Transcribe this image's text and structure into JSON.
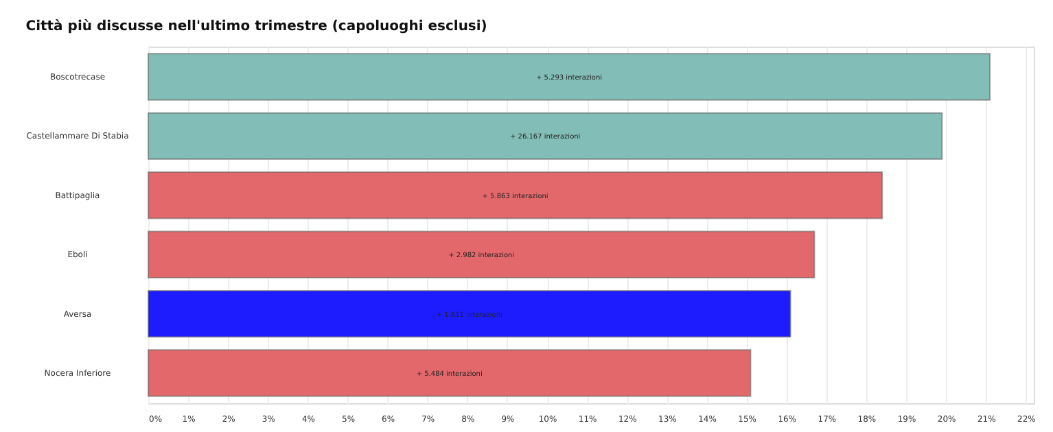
{
  "chart_data": {
    "type": "bar",
    "orientation": "horizontal",
    "title": "Città più discusse nell'ultimo trimestre (capoluoghi esclusi)",
    "categories": [
      "Boscotrecase",
      "Castellammare Di Stabia",
      "Battipaglia",
      "Eboli",
      "Aversa",
      "Nocera Inferiore"
    ],
    "values": [
      21.1,
      19.9,
      18.4,
      16.7,
      16.1,
      15.1
    ],
    "colors": [
      "#82beb7",
      "#82beb7",
      "#e3686b",
      "#e3686b",
      "#1c1cff",
      "#e3686b"
    ],
    "annotations": [
      {
        "text": "+ 5.293 interazioni",
        "y": "Boscotrecase"
      },
      {
        "text": "+ 26.167 interazioni",
        "y": "Castellammare Di Stabia"
      },
      {
        "text": "+ 5.863 interazioni",
        "y": "Battipaglia"
      },
      {
        "text": "+ 2.982 interazioni",
        "y": "Eboli"
      },
      {
        "text": "+ 1.611 interazioni",
        "y": "Aversa"
      },
      {
        "text": "+ 5.484 interazioni",
        "y": "Nocera Inferiore"
      }
    ],
    "xlim": [
      0,
      22.2
    ],
    "xticks": [
      {
        "value": 0,
        "label": "0%"
      },
      {
        "value": 1,
        "label": "1%"
      },
      {
        "value": 2,
        "label": "2%"
      },
      {
        "value": 3,
        "label": "3%"
      },
      {
        "value": 4,
        "label": "4%"
      },
      {
        "value": 5,
        "label": "5%"
      },
      {
        "value": 6,
        "label": "6%"
      },
      {
        "value": 7,
        "label": "7%"
      },
      {
        "value": 8,
        "label": "8%"
      },
      {
        "value": 9,
        "label": "9%"
      },
      {
        "value": 10,
        "label": "10%"
      },
      {
        "value": 11,
        "label": "11%"
      },
      {
        "value": 12,
        "label": "12%"
      },
      {
        "value": 13,
        "label": "13%"
      },
      {
        "value": 14,
        "label": "14%"
      },
      {
        "value": 15,
        "label": "15%"
      },
      {
        "value": 16,
        "label": "16%"
      },
      {
        "value": 17,
        "label": "17%"
      },
      {
        "value": 18,
        "label": "18%"
      },
      {
        "value": 19,
        "label": "19%"
      },
      {
        "value": 20,
        "label": "20%"
      },
      {
        "value": 21,
        "label": "21%"
      },
      {
        "value": 22,
        "label": "22%"
      }
    ],
    "grid": "x"
  }
}
